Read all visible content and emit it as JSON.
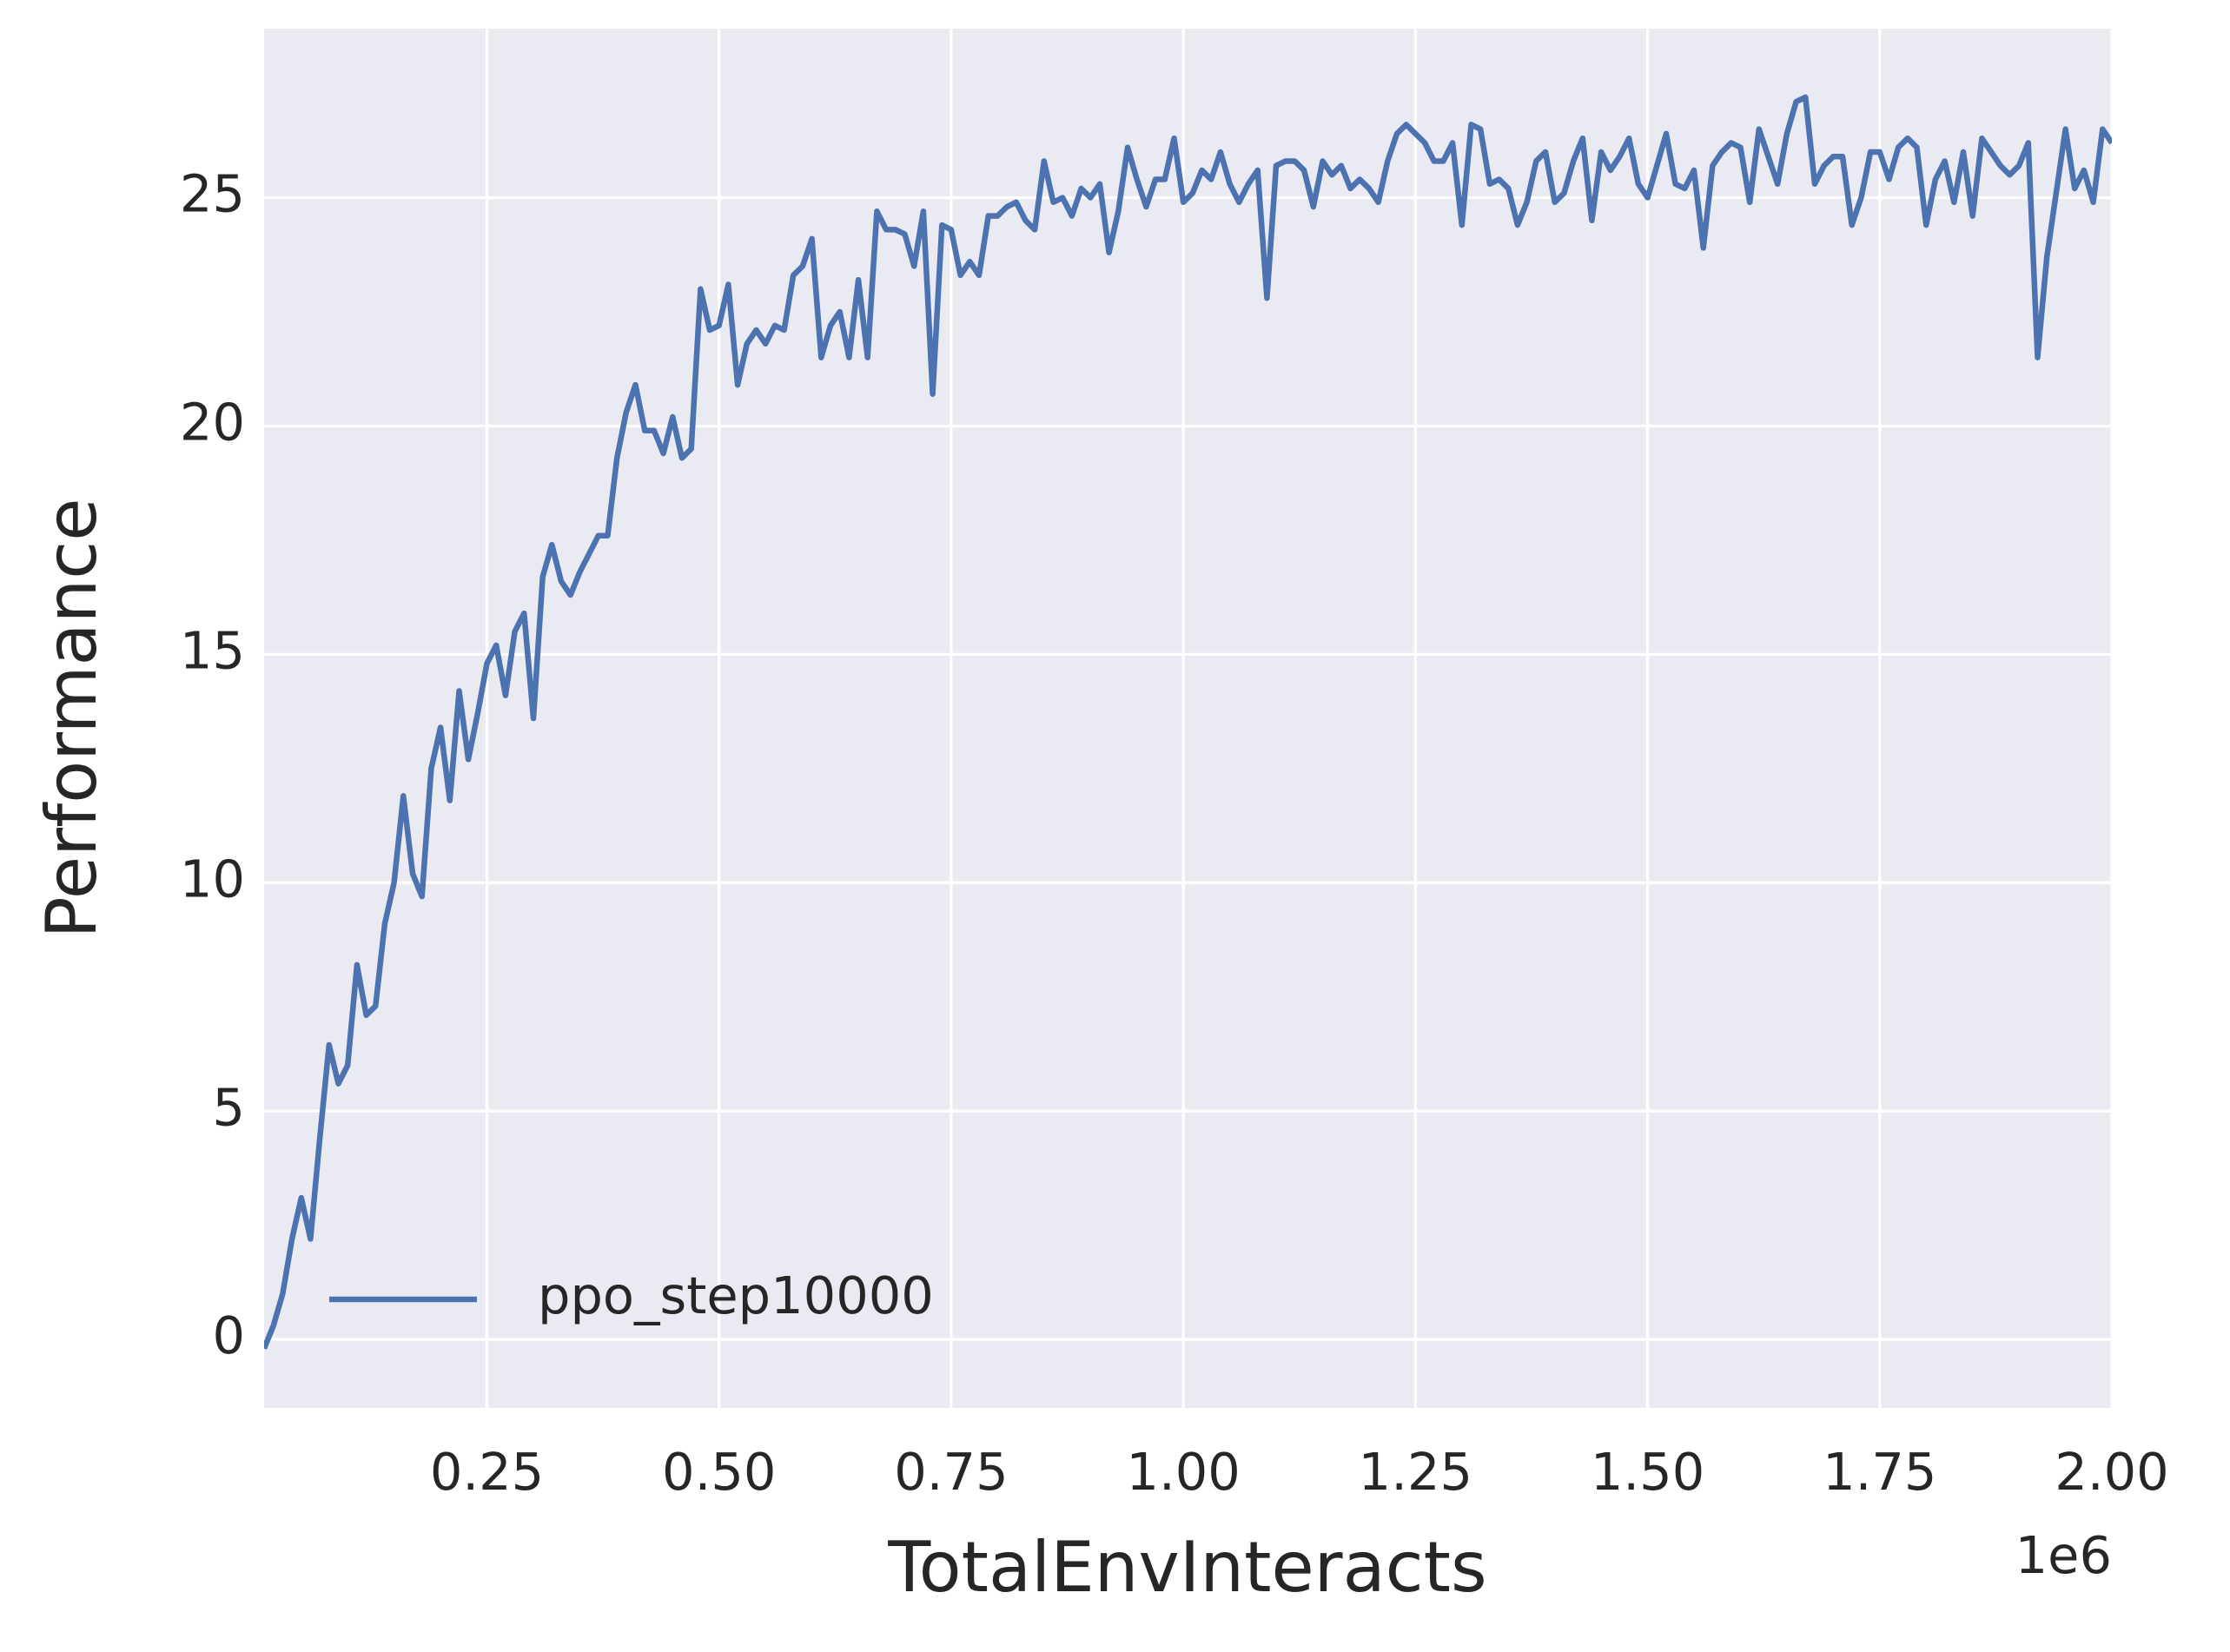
{
  "chart_data": {
    "type": "line",
    "xlabel": "TotalEnvInteracts",
    "ylabel": "Performance",
    "x_offset_label": "1e6",
    "x": [
      10000,
      20000,
      30000,
      40000,
      50000,
      60000,
      70000,
      80000,
      90000,
      100000,
      110000,
      120000,
      130000,
      140000,
      150000,
      160000,
      170000,
      180000,
      190000,
      200000,
      210000,
      220000,
      230000,
      240000,
      250000,
      260000,
      270000,
      280000,
      290000,
      300000,
      310000,
      320000,
      330000,
      340000,
      350000,
      360000,
      370000,
      380000,
      390000,
      400000,
      410000,
      420000,
      430000,
      440000,
      450000,
      460000,
      470000,
      480000,
      490000,
      500000,
      510000,
      520000,
      530000,
      540000,
      550000,
      560000,
      570000,
      580000,
      590000,
      600000,
      610000,
      620000,
      630000,
      640000,
      650000,
      660000,
      670000,
      680000,
      690000,
      700000,
      710000,
      720000,
      730000,
      740000,
      750000,
      760000,
      770000,
      780000,
      790000,
      800000,
      810000,
      820000,
      830000,
      840000,
      850000,
      860000,
      870000,
      880000,
      890000,
      900000,
      910000,
      920000,
      930000,
      940000,
      950000,
      960000,
      970000,
      980000,
      990000,
      1000000,
      1010000,
      1020000,
      1030000,
      1040000,
      1050000,
      1060000,
      1070000,
      1080000,
      1090000,
      1100000,
      1110000,
      1120000,
      1130000,
      1140000,
      1150000,
      1160000,
      1170000,
      1180000,
      1190000,
      1200000,
      1210000,
      1220000,
      1230000,
      1240000,
      1250000,
      1260000,
      1270000,
      1280000,
      1290000,
      1300000,
      1310000,
      1320000,
      1330000,
      1340000,
      1350000,
      1360000,
      1370000,
      1380000,
      1390000,
      1400000,
      1410000,
      1420000,
      1430000,
      1440000,
      1450000,
      1460000,
      1470000,
      1480000,
      1490000,
      1500000,
      1510000,
      1520000,
      1530000,
      1540000,
      1550000,
      1560000,
      1570000,
      1580000,
      1590000,
      1600000,
      1610000,
      1620000,
      1630000,
      1640000,
      1650000,
      1660000,
      1670000,
      1680000,
      1690000,
      1700000,
      1710000,
      1720000,
      1730000,
      1740000,
      1750000,
      1760000,
      1770000,
      1780000,
      1790000,
      1800000,
      1810000,
      1820000,
      1830000,
      1840000,
      1850000,
      1860000,
      1870000,
      1880000,
      1890000,
      1900000,
      1910000,
      1920000,
      1930000,
      1940000,
      1950000,
      1960000,
      1970000,
      1980000,
      1990000,
      2000000
    ],
    "series": [
      {
        "name": "ppo_step10000",
        "color": "#4c72b0",
        "values": [
          -0.2,
          0.3,
          1.0,
          2.2,
          3.1,
          2.2,
          4.4,
          6.45,
          5.6,
          6.0,
          8.2,
          7.1,
          7.3,
          9.1,
          10.0,
          11.9,
          10.2,
          9.7,
          12.5,
          13.4,
          11.8,
          14.2,
          12.7,
          13.7,
          14.8,
          15.2,
          14.1,
          15.5,
          15.9,
          13.6,
          16.7,
          17.4,
          16.6,
          16.3,
          16.8,
          17.2,
          17.6,
          17.6,
          19.3,
          20.3,
          20.9,
          19.9,
          19.9,
          19.4,
          20.2,
          19.3,
          19.5,
          23.0,
          22.1,
          22.2,
          23.1,
          20.9,
          21.8,
          22.1,
          21.8,
          22.2,
          22.1,
          23.3,
          23.5,
          24.1,
          21.5,
          22.2,
          22.5,
          21.5,
          23.2,
          21.5,
          24.7,
          24.3,
          24.3,
          24.2,
          23.5,
          24.7,
          20.7,
          24.4,
          24.3,
          23.3,
          23.6,
          23.3,
          24.6,
          24.6,
          24.8,
          24.9,
          24.5,
          24.3,
          25.8,
          24.9,
          25.0,
          24.6,
          25.2,
          25.0,
          25.3,
          23.8,
          24.7,
          26.1,
          25.4,
          24.8,
          25.4,
          25.4,
          26.3,
          24.9,
          25.1,
          25.6,
          25.4,
          26.0,
          25.3,
          24.9,
          25.3,
          25.6,
          22.8,
          25.7,
          25.8,
          25.8,
          25.6,
          24.8,
          25.8,
          25.5,
          25.7,
          25.2,
          25.4,
          25.2,
          24.9,
          25.8,
          26.4,
          26.6,
          26.4,
          26.2,
          25.8,
          25.8,
          26.2,
          24.4,
          26.6,
          26.5,
          25.3,
          25.4,
          25.2,
          24.4,
          24.9,
          25.8,
          26.0,
          24.9,
          25.1,
          25.8,
          26.3,
          24.5,
          26.0,
          25.6,
          25.9,
          26.3,
          25.3,
          25.0,
          25.7,
          26.4,
          25.3,
          25.2,
          25.6,
          23.9,
          25.7,
          26.0,
          26.2,
          26.1,
          24.9,
          26.5,
          25.9,
          25.3,
          26.4,
          27.1,
          27.2,
          25.3,
          25.7,
          25.9,
          25.9,
          24.4,
          25.0,
          26.0,
          26.0,
          25.4,
          26.1,
          26.3,
          26.1,
          24.4,
          25.4,
          25.8,
          24.9,
          26.0,
          24.6,
          26.3,
          26.0,
          25.7,
          25.5,
          25.7,
          26.2,
          21.5,
          23.7,
          25.1,
          26.5,
          25.2,
          25.6,
          24.9,
          26.5,
          26.2
        ]
      }
    ],
    "xlim": [
      10000,
      2000000
    ],
    "ylim": [
      -1.5,
      28.7
    ],
    "xticks": [
      {
        "value": 250000,
        "label": "0.25"
      },
      {
        "value": 500000,
        "label": "0.50"
      },
      {
        "value": 750000,
        "label": "0.75"
      },
      {
        "value": 1000000,
        "label": "1.00"
      },
      {
        "value": 1250000,
        "label": "1.25"
      },
      {
        "value": 1500000,
        "label": "1.50"
      },
      {
        "value": 1750000,
        "label": "1.75"
      },
      {
        "value": 2000000,
        "label": "2.00"
      }
    ],
    "yticks": [
      0,
      5,
      10,
      15,
      20,
      25
    ],
    "grid": true,
    "legend": "lower left",
    "background": "#eaeaf2"
  }
}
